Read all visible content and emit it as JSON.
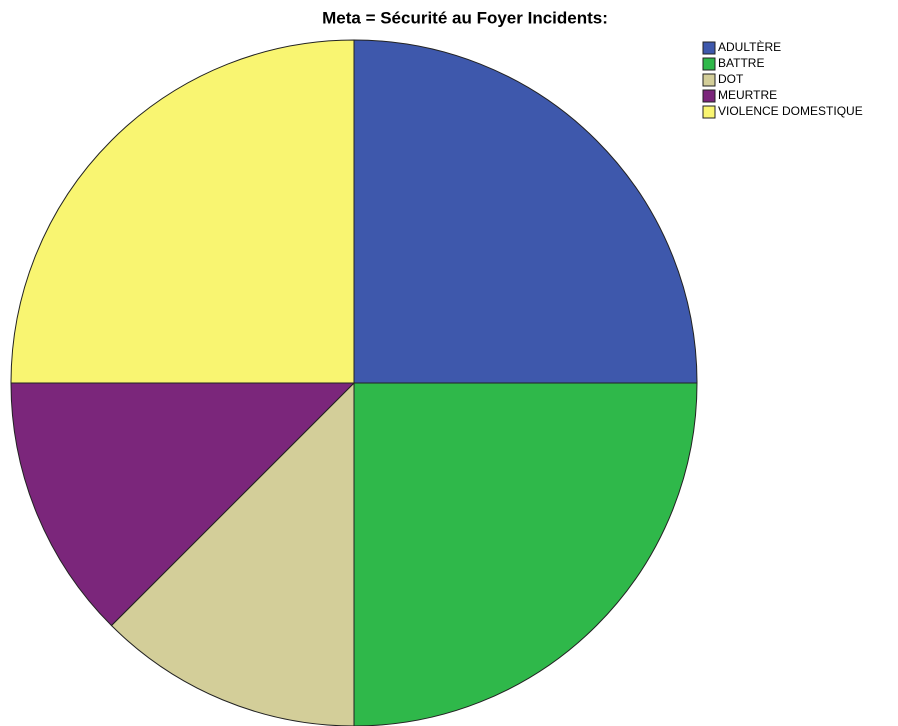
{
  "chart_data": {
    "type": "pie",
    "title": "Meta = Sécurité au Foyer Incidents:",
    "categories": [
      "ADULTÈRE",
      "BATTRE",
      "DOT",
      "MEURTRE",
      "VIOLENCE DOMESTIQUE"
    ],
    "values": [
      25,
      25,
      12.5,
      12.5,
      25
    ],
    "colors": [
      "#3e58ac",
      "#2fb84a",
      "#d3ce99",
      "#7b267b",
      "#f9f571"
    ]
  }
}
